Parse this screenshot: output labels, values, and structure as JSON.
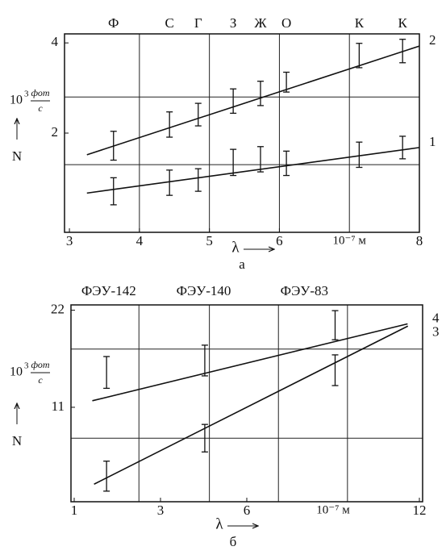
{
  "chart_data": [
    {
      "type": "line",
      "panel": "а",
      "xlabel": "λ",
      "ylabel": "N",
      "y_unit": {
        "base": "10",
        "exp": "3",
        "num": "фот",
        "den": "с"
      },
      "x_unit": "10⁻⁷ м",
      "x_unit_at": 7,
      "xscale": "linear",
      "xlim": [
        2.93,
        8.0
      ],
      "xticks": [
        3,
        4,
        5,
        6,
        8
      ],
      "ylim": [
        -0.2,
        4.2
      ],
      "yticks": [
        2,
        4
      ],
      "xgrid": [
        4,
        5,
        6,
        7
      ],
      "ygrid": [
        2.8,
        1.3
      ],
      "annotations": [
        {
          "text": "Ф",
          "x": 3.63
        },
        {
          "text": "С",
          "x": 4.43
        },
        {
          "text": "Г",
          "x": 4.84
        },
        {
          "text": "З",
          "x": 5.34
        },
        {
          "text": "Ж",
          "x": 5.73
        },
        {
          "text": "О",
          "x": 6.1
        },
        {
          "text": "К",
          "x": 7.14
        },
        {
          "text": "К",
          "x": 7.76
        }
      ],
      "series": [
        {
          "name": "2",
          "color": "#111111",
          "x": [
            3.63,
            4.43,
            4.84,
            5.34,
            5.73,
            6.1,
            7.14,
            7.76
          ],
          "values": [
            1.72,
            2.19,
            2.41,
            2.71,
            2.88,
            3.13,
            3.72,
            3.82
          ],
          "errors": [
            0.32,
            0.28,
            0.25,
            0.27,
            0.27,
            0.22,
            0.27,
            0.26
          ],
          "fit": {
            "x": [
              3.25,
              8.0
            ],
            "values": [
              1.52,
              3.93
            ]
          }
        },
        {
          "name": "1",
          "color": "#111111",
          "x": [
            3.63,
            4.43,
            4.84,
            5.34,
            5.73,
            6.1,
            7.14,
            7.76
          ],
          "values": [
            0.71,
            0.9,
            0.96,
            1.35,
            1.42,
            1.33,
            1.52,
            1.68
          ],
          "errors": [
            0.3,
            0.28,
            0.25,
            0.29,
            0.28,
            0.27,
            0.28,
            0.25
          ],
          "fit": {
            "x": [
              3.25,
              8.0
            ],
            "values": [
              0.67,
              1.68
            ]
          }
        }
      ]
    },
    {
      "type": "line",
      "panel": "б",
      "xlabel": "λ",
      "ylabel": "N",
      "y_unit": {
        "base": "10",
        "exp": "3",
        "num": "фот",
        "den": "с"
      },
      "x_unit": "10⁻⁷ м",
      "x_unit_at": 9,
      "xscale": "slots",
      "xticks": [
        1,
        3,
        6,
        12
      ],
      "ylim": [
        0.3,
        22.6
      ],
      "yticks": [
        11,
        22
      ],
      "xgrid": [
        2.5,
        4.7,
        7.1,
        9.5
      ],
      "ygrid": [
        17.6,
        7.5
      ],
      "annotations": [
        {
          "text": "ФЭУ-142",
          "x": 1.8
        },
        {
          "text": "ФЭУ-140",
          "x": 4.5
        },
        {
          "text": "ФЭУ-83",
          "x": 8.0
        }
      ],
      "series": [
        {
          "name": "4",
          "color": "#111111",
          "x": [
            1.75,
            4.54,
            9.07
          ],
          "values": [
            14.95,
            16.3,
            20.3
          ],
          "errors": [
            1.8,
            1.74,
            1.65
          ],
          "fit": {
            "x": [
              1.42,
              11.59
            ],
            "values": [
              11.74,
              20.45
            ]
          }
        },
        {
          "name": "3",
          "color": "#111111",
          "x": [
            1.75,
            4.54,
            9.07
          ],
          "values": [
            3.2,
            7.5,
            15.2
          ],
          "errors": [
            1.7,
            1.56,
            1.74
          ],
          "fit": {
            "x": [
              1.46,
              11.6
            ],
            "values": [
              2.29,
              20.2
            ]
          }
        }
      ]
    }
  ]
}
